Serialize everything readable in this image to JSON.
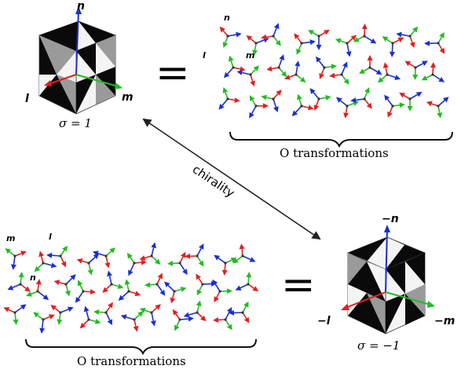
{
  "cube_top": {
    "vec_n": "n",
    "vec_l": "l",
    "vec_m": "m",
    "sigma_label": "σ = 1",
    "equals": "="
  },
  "group_top": {
    "axis_n": "n",
    "axis_l": "l",
    "axis_m": "m",
    "caption": "O transformations"
  },
  "arrow_label": "chirality",
  "cube_bottom": {
    "vec_n": "−n",
    "vec_l": "−l",
    "vec_m": "−m",
    "sigma_label": "σ = −1",
    "equals": "="
  },
  "group_bottom": {
    "axis_m": "m",
    "axis_l": "l",
    "axis_n": "n",
    "caption": "O transformations"
  },
  "colors": {
    "axis_red": "#e02020",
    "axis_green": "#22bb22",
    "axis_blue": "#1a2fd0",
    "cube_black": "#0a0a0a",
    "cube_grey": "#9a9a9a",
    "cube_white": "#f4f4f4"
  }
}
